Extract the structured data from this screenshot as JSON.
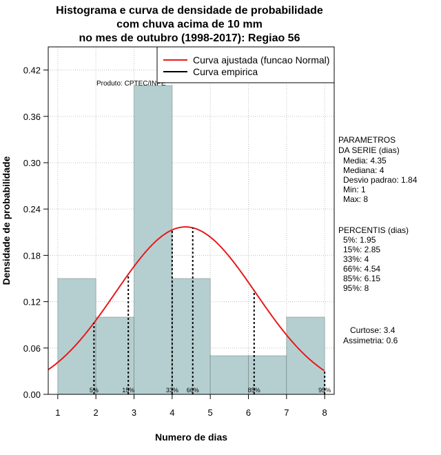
{
  "chart_data": {
    "type": "bar",
    "title": [
      "Histograma e curva de densidade de probabilidade",
      "com chuva acima de 10 mm",
      "no mes de outubro (1998-2017): Regiao 56"
    ],
    "xlabel": "Numero de dias",
    "ylabel": "Densidade de probabilidade",
    "xlim": [
      0.75,
      8.25
    ],
    "ylim": [
      0,
      0.45
    ],
    "xticks": [
      1,
      2,
      3,
      4,
      5,
      6,
      7,
      8
    ],
    "yticks": [
      0.0,
      0.06,
      0.12,
      0.18,
      0.24,
      0.3,
      0.36,
      0.42
    ],
    "ytick_labels": [
      "0.00",
      "0.06",
      "0.12",
      "0.18",
      "0.24",
      "0.30",
      "0.36",
      "0.42"
    ],
    "grid": true,
    "bins": [
      {
        "x0": 1,
        "x1": 2,
        "value": 0.15
      },
      {
        "x0": 2,
        "x1": 3,
        "value": 0.1
      },
      {
        "x0": 3,
        "x1": 4,
        "value": 0.4
      },
      {
        "x0": 4,
        "x1": 5,
        "value": 0.15
      },
      {
        "x0": 5,
        "x1": 6,
        "value": 0.05
      },
      {
        "x0": 6,
        "x1": 7,
        "value": 0.05
      },
      {
        "x0": 7,
        "x1": 8,
        "value": 0.1
      }
    ],
    "fitted_curve": {
      "name": "Curva ajustada (funcao Normal)",
      "mean": 4.35,
      "sd": 1.84,
      "color": "#e8171a"
    },
    "empirical_curve": {
      "name": "Curva empirica",
      "color": "#000000"
    },
    "percentile_lines": [
      {
        "label": "5%",
        "x": 1.95
      },
      {
        "label": "15%",
        "x": 2.85
      },
      {
        "label": "33%",
        "x": 4
      },
      {
        "label": "66%",
        "x": 4.54
      },
      {
        "label": "85%",
        "x": 6.15
      },
      {
        "label": "95%",
        "x": 8
      }
    ],
    "annotation": "Produto: CPTEC/INPE",
    "bar_color": "#b5cfd0",
    "legend_position": "top-right"
  },
  "side_panel": {
    "params_header": "PARAMETROS\nDA SERIE (dias)",
    "params": [
      "Media: 4.35",
      "Mediana: 4",
      "Desvio padrao: 1.84",
      "Min: 1",
      "Max: 8"
    ],
    "percentis_header": "PERCENTIS (dias)",
    "percentis": [
      "5%: 1.95",
      "15%: 2.85",
      "33%: 4",
      "66%: 4.54",
      "85%: 6.15",
      "95%: 8"
    ],
    "stats": [
      "Curtose: 3.4",
      "Assimetria: 0.6"
    ]
  }
}
